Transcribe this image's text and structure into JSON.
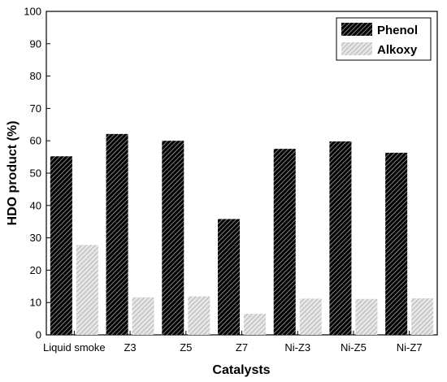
{
  "chart_data": {
    "type": "bar",
    "title": "",
    "xlabel": "Catalysts",
    "ylabel": "HDO product (%)",
    "ylim": [
      0,
      100
    ],
    "yticks": [
      0,
      10,
      20,
      30,
      40,
      50,
      60,
      70,
      80,
      90,
      100
    ],
    "categories": [
      "Liquid smoke",
      "Z3",
      "Z5",
      "Z7",
      "Ni-Z3",
      "Ni-Z5",
      "Ni-Z7"
    ],
    "series": [
      {
        "name": "Phenol",
        "values": [
          55.2,
          62.1,
          60.0,
          35.8,
          57.5,
          59.8,
          56.3
        ],
        "color": "#222222",
        "pattern": "dark-hatch"
      },
      {
        "name": "Alkoxy",
        "values": [
          27.8,
          11.6,
          11.9,
          6.5,
          11.2,
          11.1,
          11.3
        ],
        "color": "#c8c8c8",
        "pattern": "light-hatch"
      }
    ],
    "legend": "top-right",
    "grid": false
  }
}
